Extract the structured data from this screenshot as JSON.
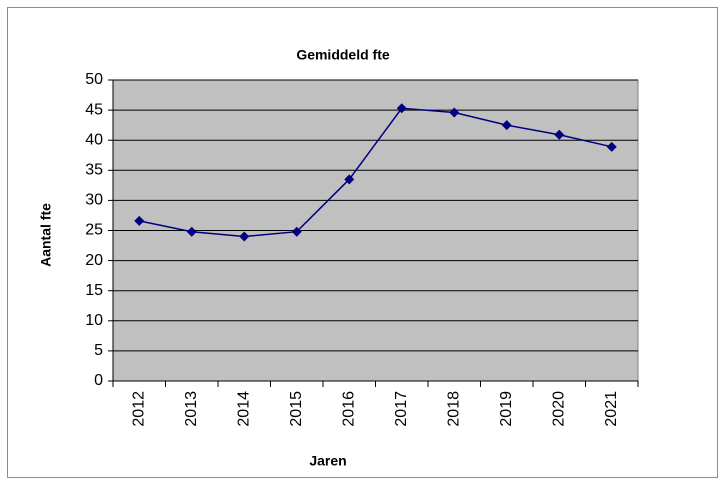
{
  "chart_data": {
    "type": "line",
    "title": "Gemiddeld fte",
    "xlabel": "Jaren",
    "ylabel": "Aantal fte",
    "categories": [
      "2012",
      "2013",
      "2014",
      "2015",
      "2016",
      "2017",
      "2018",
      "2019",
      "2020",
      "2021"
    ],
    "values": [
      26.6,
      24.8,
      24.0,
      24.8,
      33.5,
      45.3,
      44.6,
      42.5,
      40.9,
      38.9
    ],
    "color": "#000080",
    "ylim": [
      0,
      50
    ],
    "yticks": [
      0,
      5,
      10,
      15,
      20,
      25,
      30,
      35,
      40,
      45,
      50
    ],
    "grid": true
  }
}
